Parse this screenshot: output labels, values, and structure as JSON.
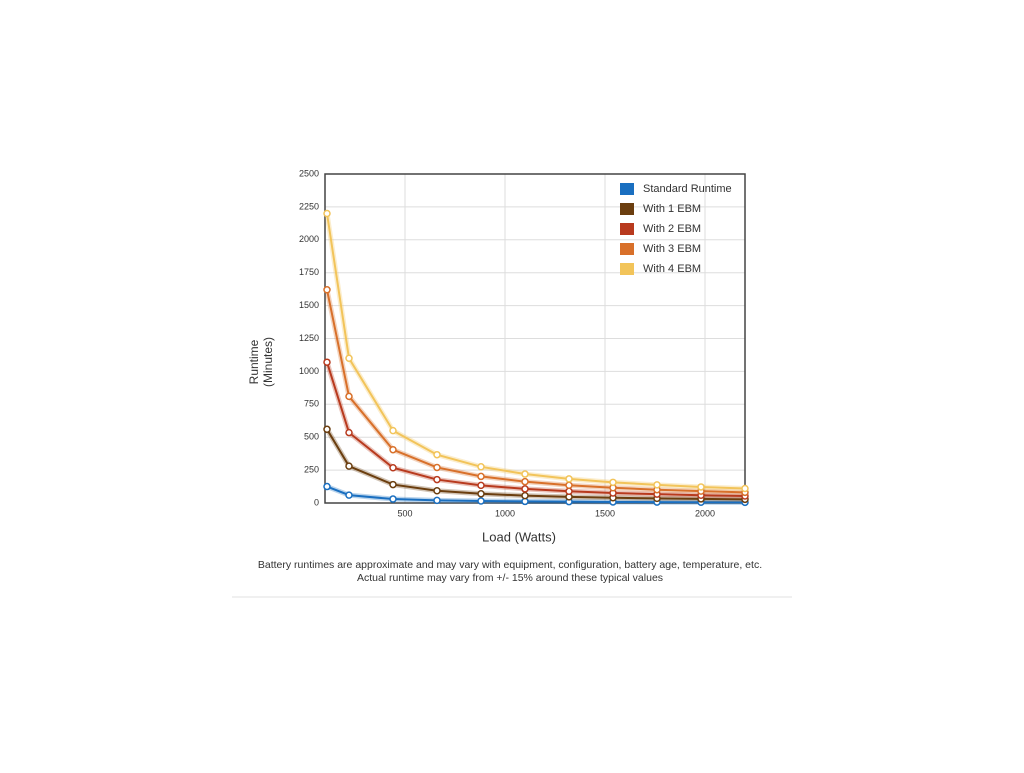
{
  "chart_data": {
    "type": "line",
    "xlabel": "Load (Watts)",
    "ylabel": [
      "Runtime",
      "(Minutes)"
    ],
    "x": [
      110,
      220,
      440,
      660,
      880,
      1100,
      1320,
      1540,
      1760,
      1980,
      2200
    ],
    "series": [
      {
        "name": "Standard Runtime",
        "color": "#1a6fc0",
        "values": [
          125,
          60,
          30,
          20,
          15,
          12,
          10,
          8,
          7,
          6,
          5
        ]
      },
      {
        "name": "With 1 EBM",
        "color": "#6b3e0f",
        "values": [
          560,
          280,
          140,
          93,
          70,
          56,
          47,
          40,
          35,
          31,
          28
        ]
      },
      {
        "name": "With 2 EBM",
        "color": "#b83a1e",
        "values": [
          1070,
          535,
          268,
          178,
          134,
          107,
          89,
          76,
          67,
          59,
          53
        ]
      },
      {
        "name": "With 3 EBM",
        "color": "#d8702a",
        "values": [
          1620,
          810,
          405,
          270,
          202,
          162,
          135,
          116,
          101,
          90,
          81
        ]
      },
      {
        "name": "With 4 EBM",
        "color": "#f2c45a",
        "values": [
          2200,
          1100,
          550,
          367,
          275,
          220,
          183,
          157,
          138,
          122,
          110
        ]
      }
    ],
    "xlim": [
      100,
      2200
    ],
    "xticks": [
      500,
      1000,
      1500,
      2000
    ],
    "ylim": [
      0,
      2500
    ],
    "yticks": [
      0,
      250,
      500,
      750,
      1000,
      1250,
      1500,
      1750,
      2000,
      2250,
      2500
    ],
    "grid": true,
    "legend": "top-right",
    "notes": [
      "Battery runtimes are approximate and may vary with equipment, configuration, battery age, temperature, etc.",
      "Actual runtime may vary from +/- 15% around these typical values"
    ]
  }
}
